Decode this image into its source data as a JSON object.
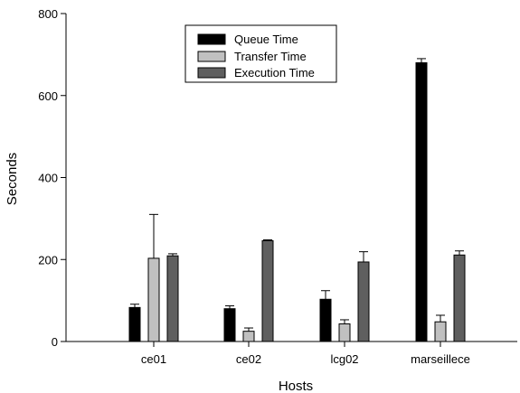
{
  "chart_data": {
    "type": "bar",
    "title": "",
    "xlabel": "Hosts",
    "ylabel": "Seconds",
    "ylim": [
      0,
      800
    ],
    "yticks": [
      0,
      200,
      400,
      600,
      800
    ],
    "grid": false,
    "legend_position": "top-left",
    "categories": [
      "ce01",
      "ce02",
      "lcg02",
      "marseillece"
    ],
    "series": [
      {
        "name": "Queue Time",
        "color": "#000000",
        "values": [
          83,
          80,
          103,
          680
        ],
        "error_upper": [
          8,
          7,
          21,
          10
        ]
      },
      {
        "name": "Transfer Time",
        "color": "#c0c0c0",
        "values": [
          203,
          25,
          43,
          48
        ],
        "error_upper": [
          107,
          8,
          10,
          16
        ]
      },
      {
        "name": "Execution Time",
        "color": "#5f5f5f",
        "values": [
          209,
          246,
          194,
          211
        ],
        "error_upper": [
          5,
          2,
          25,
          10
        ]
      }
    ]
  }
}
